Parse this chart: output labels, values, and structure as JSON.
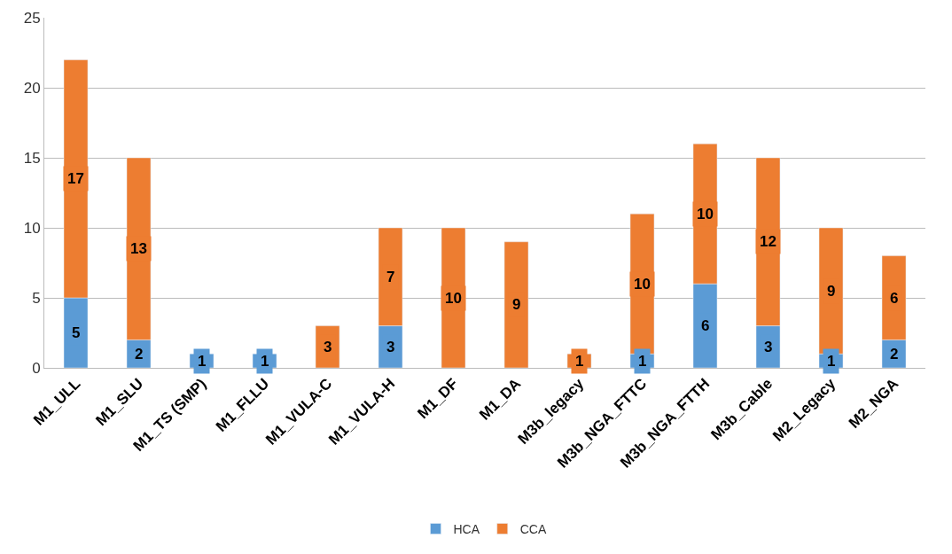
{
  "chart_data": {
    "type": "bar",
    "stacked": true,
    "categories": [
      "M1_ULL",
      "M1_SLU",
      "M1_TS (SMP)",
      "M1_FLLU",
      "M1_VULA-C",
      "M1_VULA-H",
      "M1_DF",
      "M1_DA",
      "M3b_legacy",
      "M3b_NGA_FTTC",
      "M3b_NGA_FTTH",
      "M3b_Cable",
      "M2_Legacy",
      "M2_NGA"
    ],
    "series": [
      {
        "name": "HCA",
        "color": "#5b9bd5",
        "values": [
          5,
          2,
          1,
          1,
          null,
          3,
          null,
          null,
          null,
          1,
          6,
          3,
          1,
          2
        ]
      },
      {
        "name": "CCA",
        "color": "#ed7d31",
        "values": [
          17,
          13,
          null,
          null,
          3,
          7,
          10,
          9,
          1,
          10,
          10,
          12,
          9,
          6
        ]
      }
    ],
    "ylim": [
      0,
      25
    ],
    "yticks": [
      0,
      5,
      10,
      15,
      20,
      25
    ],
    "grid": "y",
    "legend": "bottom",
    "data_labels": true
  }
}
